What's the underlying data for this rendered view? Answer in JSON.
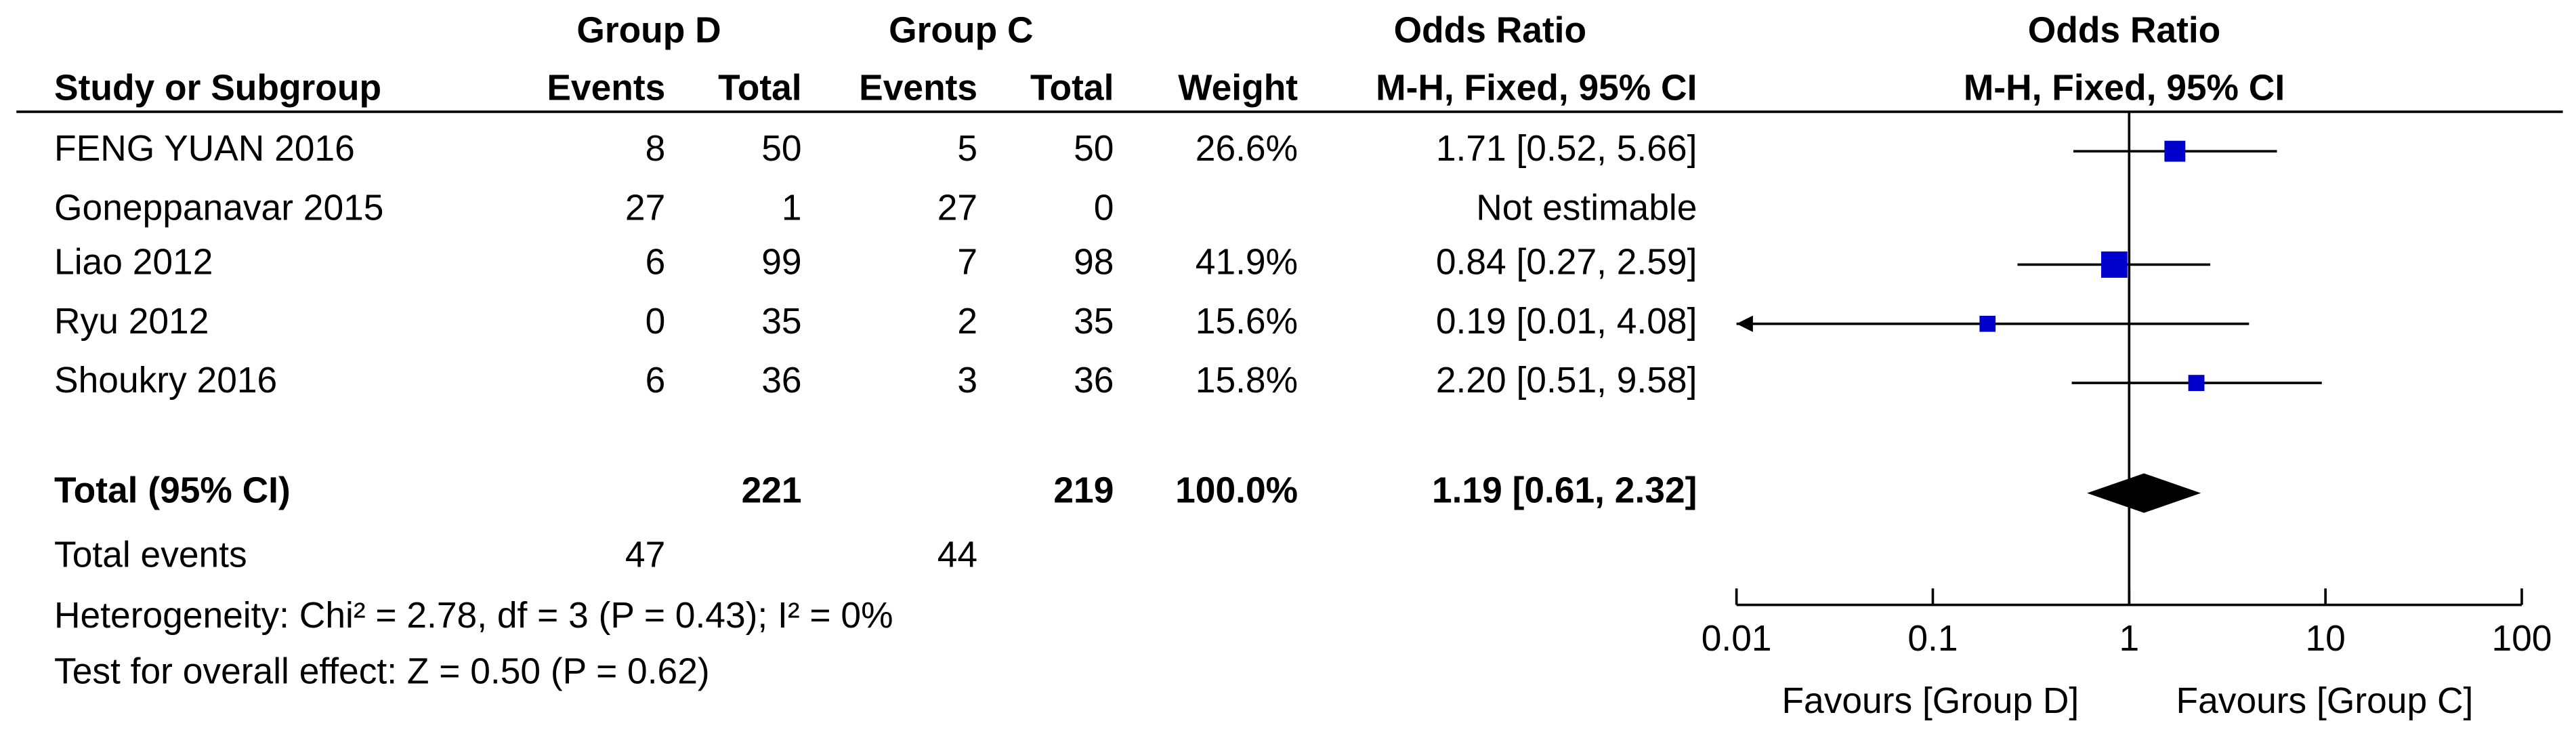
{
  "chart_data": {
    "type": "forest",
    "headers": {
      "group_d": "Group D",
      "group_c": "Group C",
      "odds_ratio_table": "Odds Ratio",
      "odds_ratio_plot": "Odds Ratio",
      "study": "Study or Subgroup",
      "events_d": "Events",
      "total_d": "Total",
      "events_c": "Events",
      "total_c": "Total",
      "weight": "Weight",
      "method_table": "M-H, Fixed, 95% CI",
      "method_plot": "M-H, Fixed, 95% CI"
    },
    "studies": [
      "FENG YUAN 2016",
      "Goneppanavar 2015",
      "Liao 2012",
      "Ryu 2012",
      "Shoukry 2016"
    ],
    "group_d_events": [
      8,
      27,
      6,
      0,
      6
    ],
    "group_d_total": [
      50,
      1,
      99,
      35,
      36
    ],
    "group_c_events": [
      5,
      27,
      7,
      2,
      3
    ],
    "group_c_total": [
      50,
      0,
      98,
      35,
      36
    ],
    "weight": [
      26.6,
      null,
      41.9,
      15.6,
      15.8
    ],
    "weight_labels": [
      "26.6%",
      null,
      "41.9%",
      "15.6%",
      "15.8%"
    ],
    "odds_ratio": [
      1.71,
      null,
      0.84,
      0.19,
      2.2
    ],
    "ci_lower": [
      0.52,
      null,
      0.27,
      0.01,
      0.51
    ],
    "ci_upper": [
      5.66,
      null,
      2.59,
      4.08,
      9.58
    ],
    "or_labels": [
      "1.71 [0.52, 5.66]",
      "Not estimable",
      "0.84 [0.27, 2.59]",
      "0.19 [0.01, 4.08]",
      "2.20 [0.51, 9.58]"
    ],
    "total": {
      "label": "Total (95% CI)",
      "group_d_total": 221,
      "group_c_total": 219,
      "weight": 100.0,
      "weight_label": "100.0%",
      "odds_ratio": 1.19,
      "ci_lower": 0.61,
      "ci_upper": 2.32,
      "or_label": "1.19 [0.61, 2.32]"
    },
    "total_events": {
      "label": "Total events",
      "group_d": 47,
      "group_c": 44
    },
    "heterogeneity": "Heterogeneity: Chi² = 2.78, df = 3 (P = 0.43); I² = 0%",
    "overall_effect": "Test for overall effect: Z = 0.50 (P = 0.62)",
    "xlim": [
      0.01,
      100
    ],
    "xticks": [
      0.01,
      0.1,
      1,
      10,
      100
    ],
    "log_x": true,
    "reference_line": 1,
    "favours_left": "Favours [Group D]",
    "favours_right": "Favours [Group C]",
    "marker_color": "#0000cc",
    "diamond_color": "#000000"
  }
}
